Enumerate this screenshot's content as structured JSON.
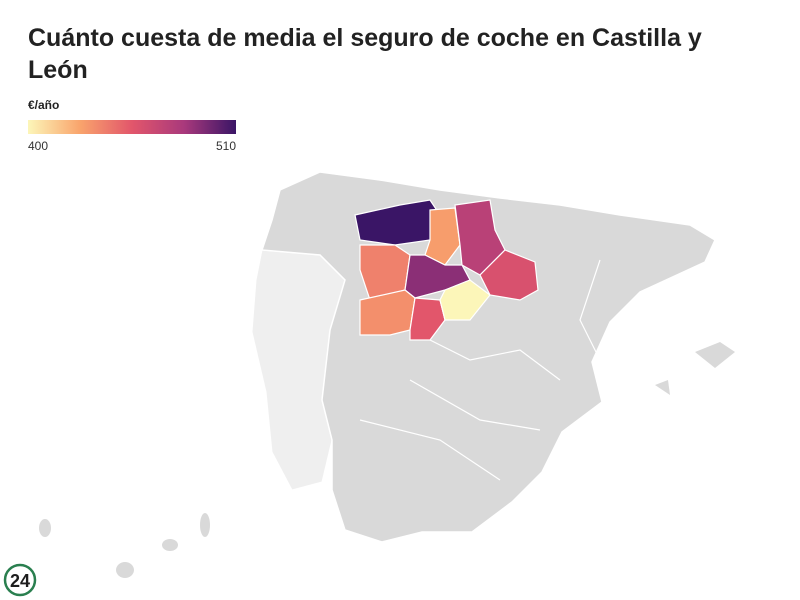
{
  "title": "Cuánto cuesta de media el seguro de coche en Castilla y León",
  "legend": {
    "label": "€/año",
    "min": 400,
    "max": 510,
    "colors": [
      "#fcf6b9",
      "#f9a46c",
      "#e2566b",
      "#a9397c",
      "#3a1566"
    ]
  },
  "regions": {
    "values": [
      510,
      430,
      475,
      440,
      490,
      460,
      435,
      455,
      400
    ]
  },
  "logo": "24"
}
